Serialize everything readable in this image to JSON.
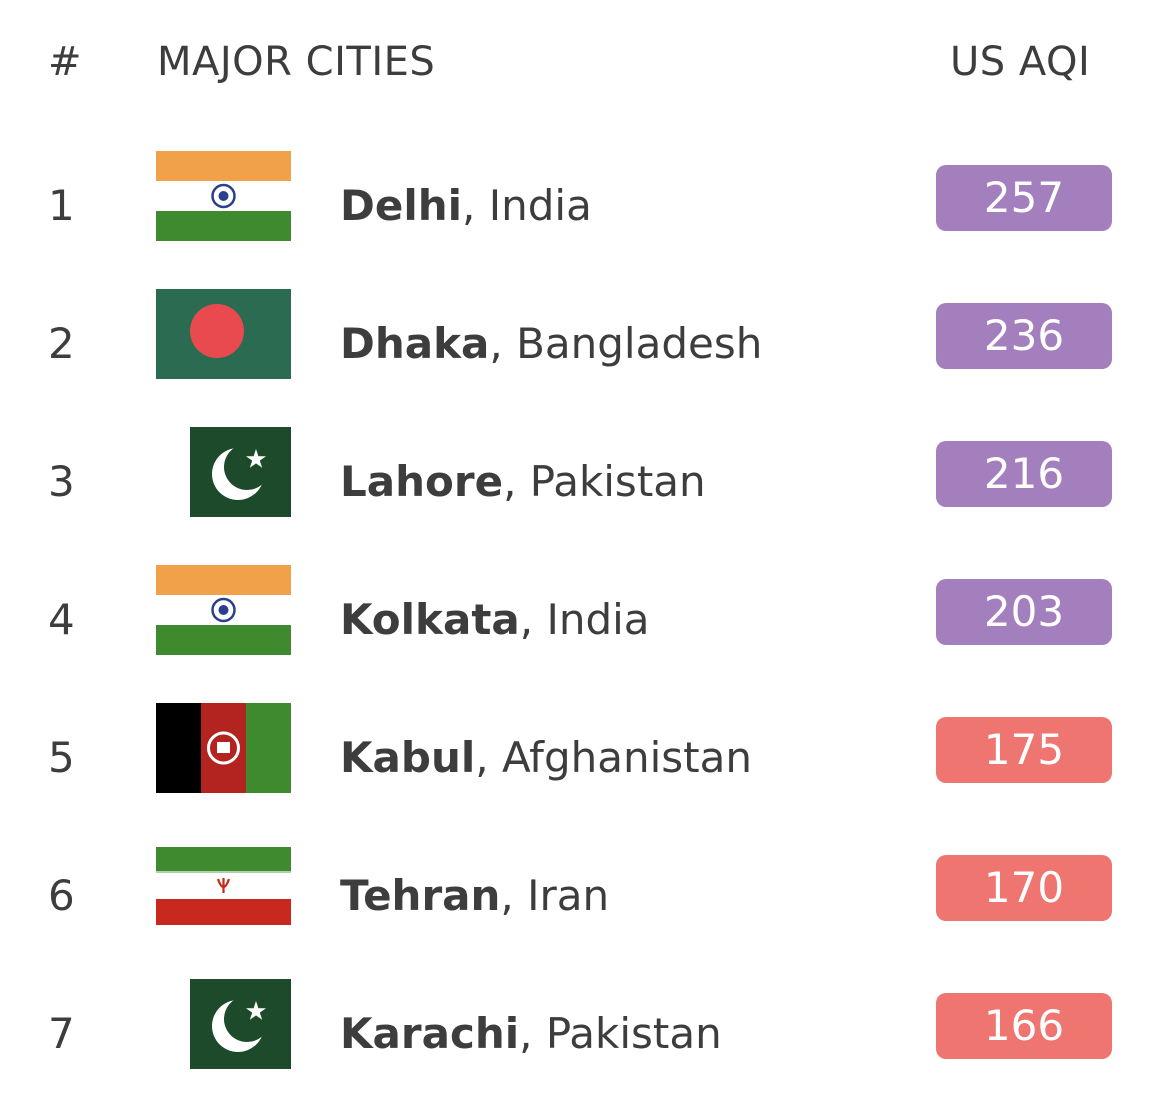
{
  "header": {
    "rank": "#",
    "city": "MAJOR CITIES",
    "aqi": "US AQI"
  },
  "rows": [
    {
      "rank": "1",
      "city": "Delhi",
      "country": ", India",
      "aqi": "257",
      "flag": "india-flag-icon",
      "aqi_color": "#a37fbd"
    },
    {
      "rank": "2",
      "city": "Dhaka",
      "country": ", Bangladesh",
      "aqi": "236",
      "flag": "bangladesh-flag-icon",
      "aqi_color": "#a37fbd"
    },
    {
      "rank": "3",
      "city": "Lahore",
      "country": ", Pakistan",
      "aqi": "216",
      "flag": "pakistan-flag-icon",
      "aqi_color": "#a37fbd"
    },
    {
      "rank": "4",
      "city": "Kolkata",
      "country": ", India",
      "aqi": "203",
      "flag": "india-flag-icon",
      "aqi_color": "#a37fbd"
    },
    {
      "rank": "5",
      "city": "Kabul",
      "country": ", Afghanistan",
      "aqi": "175",
      "flag": "afghanistan-flag-icon",
      "aqi_color": "#ee7570"
    },
    {
      "rank": "6",
      "city": "Tehran",
      "country": ", Iran",
      "aqi": "170",
      "flag": "iran-flag-icon",
      "aqi_color": "#ee7570"
    },
    {
      "rank": "7",
      "city": "Karachi",
      "country": ", Pakistan",
      "aqi": "166",
      "flag": "pakistan-flag-icon",
      "aqi_color": "#ee7570"
    }
  ]
}
